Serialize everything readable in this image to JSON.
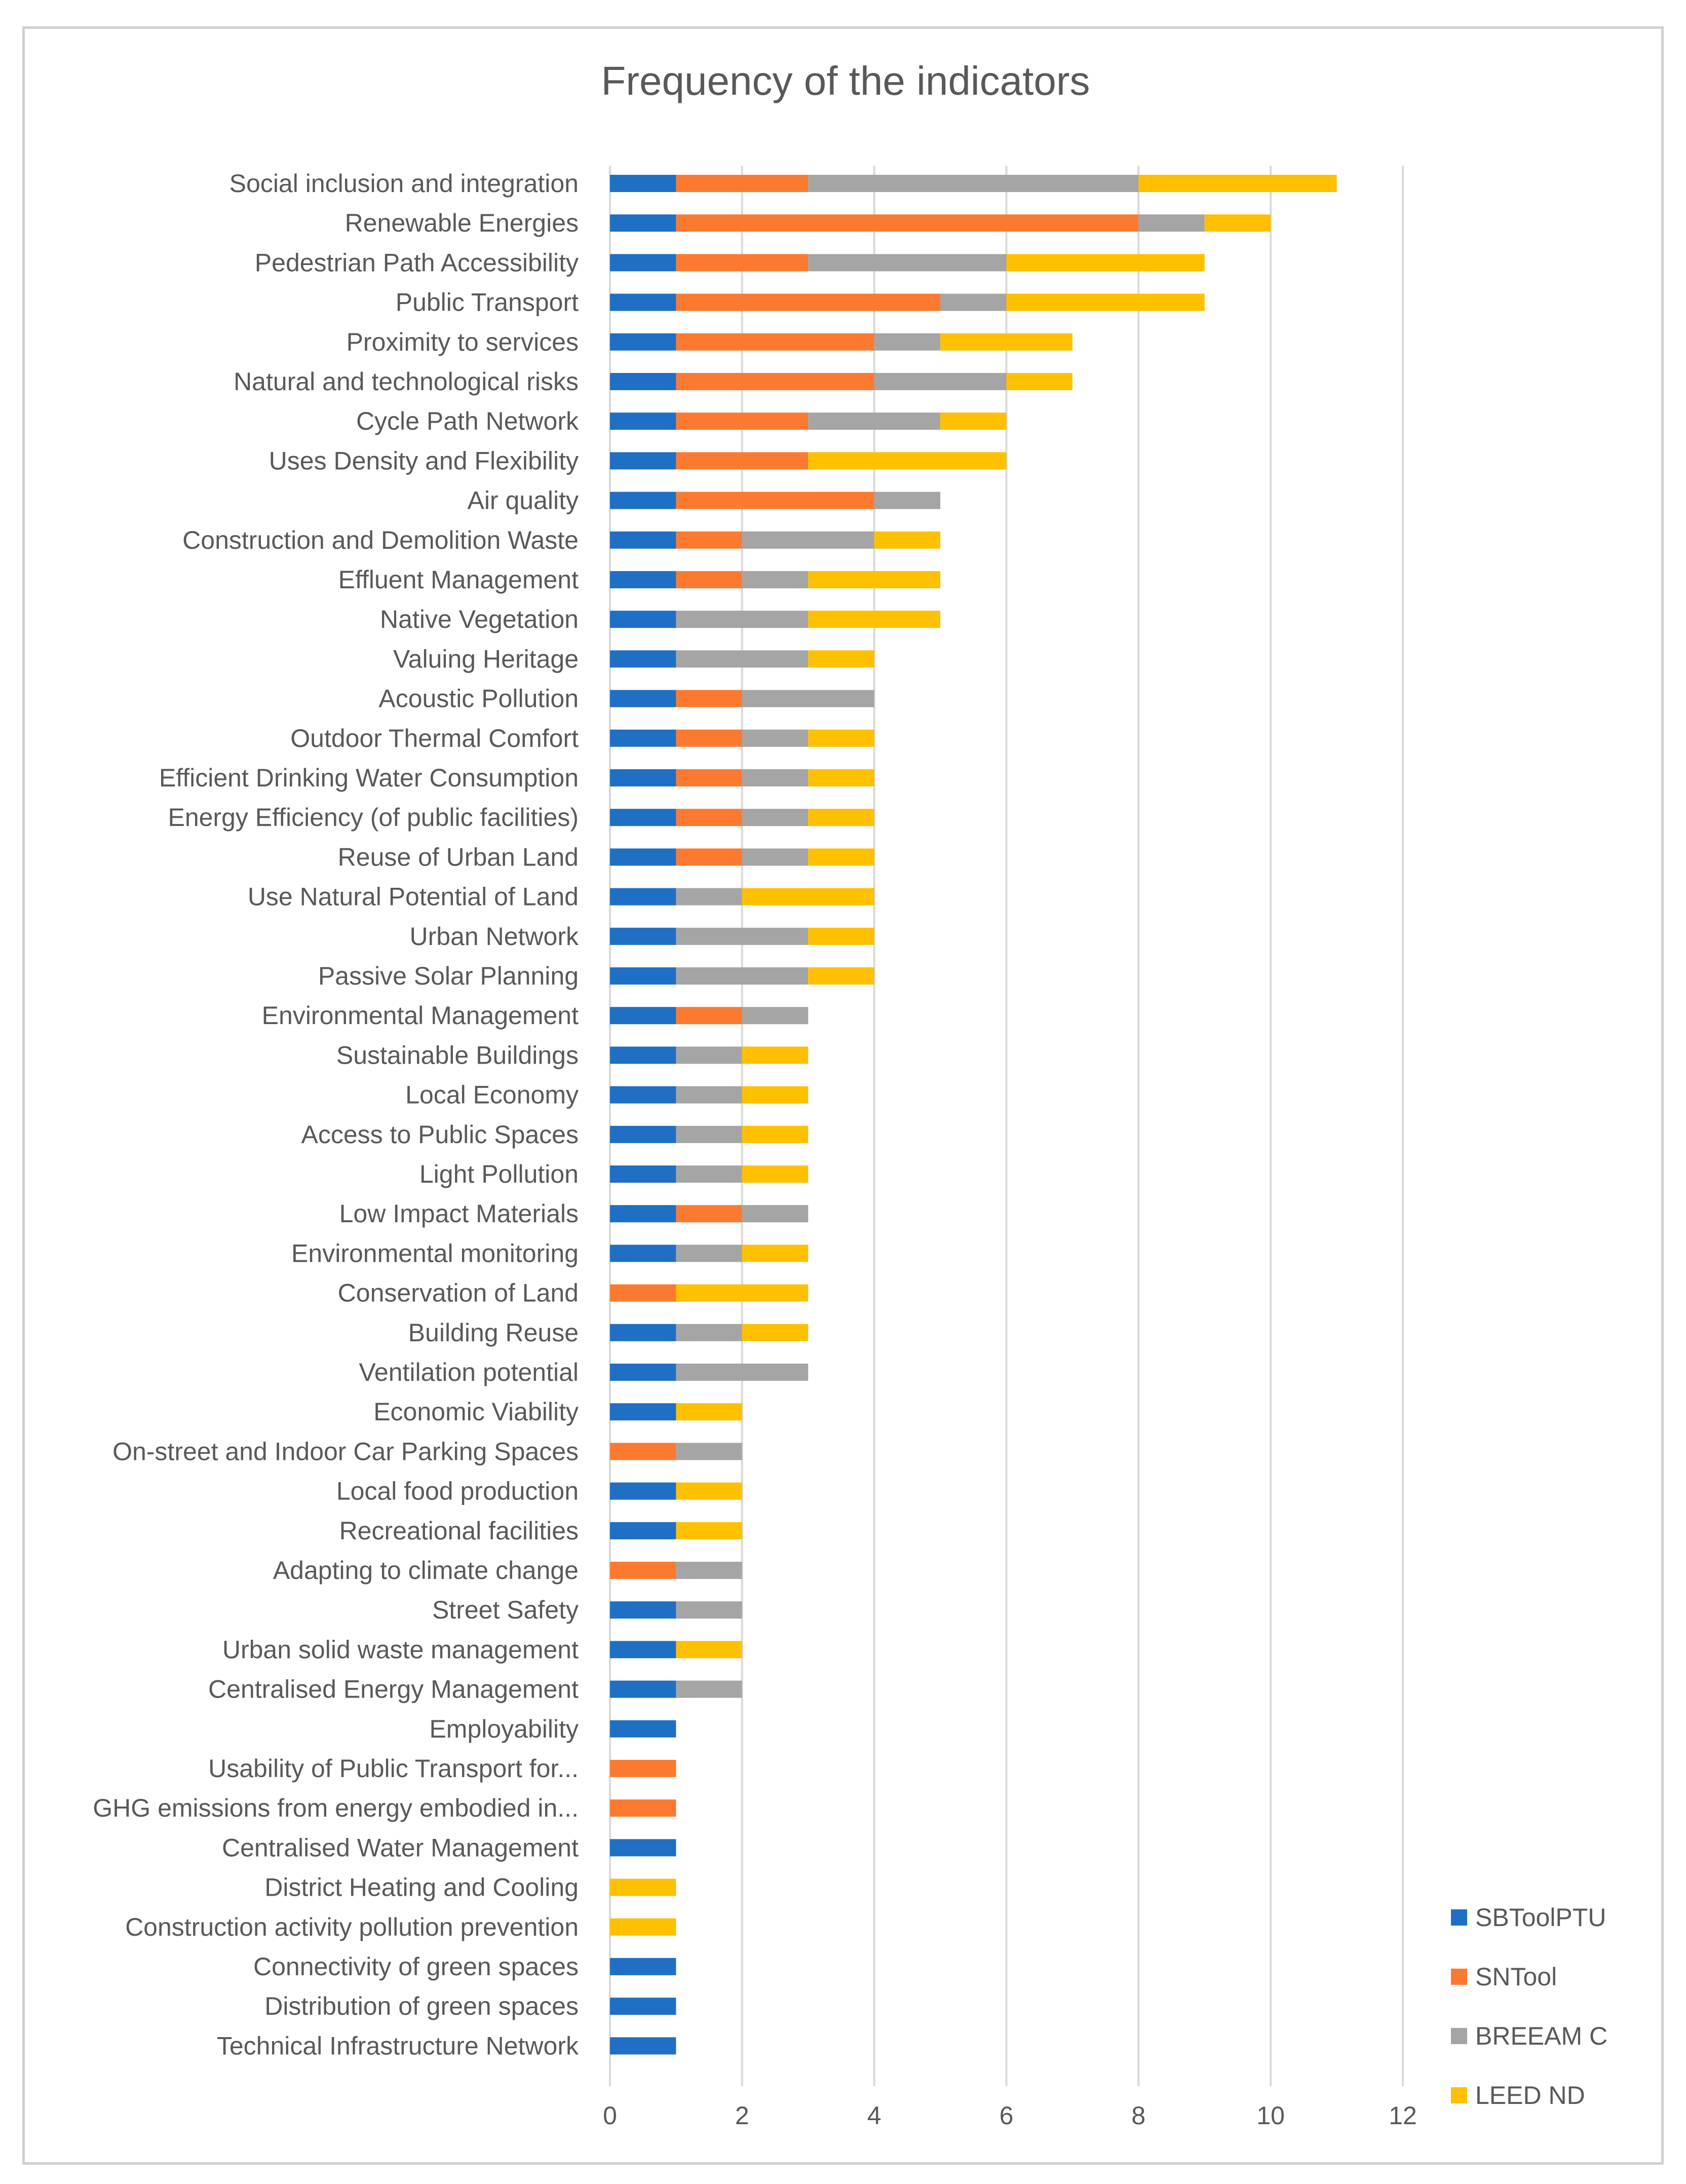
{
  "chart_data": {
    "type": "bar",
    "orientation": "horizontal",
    "stacked": true,
    "title": "Frequency of the indicators",
    "xlabel": "",
    "ylabel": "",
    "xlim": [
      0,
      12
    ],
    "x_ticks": [
      0,
      2,
      4,
      6,
      8,
      10,
      12
    ],
    "grid": true,
    "legend": {
      "position": "bottom-right"
    },
    "categories": [
      "Social inclusion and integration",
      "Renewable Energies",
      "Pedestrian Path Accessibility",
      "Public Transport",
      "Proximity to services",
      "Natural and technological risks",
      "Cycle Path Network",
      "Uses Density and Flexibility",
      "Air quality",
      "Construction and Demolition Waste",
      "Effluent Management",
      "Native Vegetation",
      "Valuing Heritage",
      "Acoustic Pollution",
      "Outdoor Thermal Comfort",
      "Efficient Drinking Water Consumption",
      "Energy Efficiency (of public facilities)",
      "Reuse of Urban Land",
      "Use Natural Potential of Land",
      "Urban Network",
      "Passive Solar Planning",
      "Environmental Management",
      "Sustainable Buildings",
      "Local Economy",
      "Access to Public Spaces",
      "Light Pollution",
      "Low Impact Materials",
      "Environmental monitoring",
      "Conservation of Land",
      "Building Reuse",
      "Ventilation potential",
      "Economic Viability",
      "On-street and Indoor Car Parking Spaces",
      "Local food production",
      "Recreational facilities",
      "Adapting to climate change",
      "Street Safety",
      "Urban solid waste management",
      "Centralised Energy Management",
      "Employability",
      "Usability of Public Transport for...",
      "GHG emissions from energy embodied in...",
      "Centralised Water Management",
      "District Heating and Cooling",
      "Construction activity pollution prevention",
      "Connectivity of green spaces",
      "Distribution of green spaces",
      "Technical Infrastructure Network"
    ],
    "series": [
      {
        "name": "SBToolPTU",
        "color": "#1f6fc5",
        "values": [
          1,
          1,
          1,
          1,
          1,
          1,
          1,
          1,
          1,
          1,
          1,
          1,
          1,
          1,
          1,
          1,
          1,
          1,
          1,
          1,
          1,
          1,
          1,
          1,
          1,
          1,
          1,
          1,
          0,
          1,
          1,
          1,
          0,
          1,
          1,
          0,
          1,
          1,
          1,
          1,
          0,
          0,
          1,
          0,
          0,
          1,
          1,
          1
        ]
      },
      {
        "name": "SNTool",
        "color": "#fb7a30",
        "values": [
          2,
          7,
          2,
          4,
          3,
          3,
          2,
          2,
          3,
          1,
          1,
          0,
          0,
          1,
          1,
          1,
          1,
          1,
          0,
          0,
          0,
          1,
          0,
          0,
          0,
          0,
          1,
          0,
          1,
          0,
          0,
          0,
          1,
          0,
          0,
          1,
          0,
          0,
          0,
          0,
          1,
          1,
          0,
          0,
          0,
          0,
          0,
          0
        ]
      },
      {
        "name": "BREEAM C",
        "color": "#a5a5a5",
        "values": [
          5,
          1,
          3,
          1,
          1,
          2,
          2,
          0,
          1,
          2,
          1,
          2,
          2,
          2,
          1,
          1,
          1,
          1,
          1,
          2,
          2,
          1,
          1,
          1,
          1,
          1,
          1,
          1,
          0,
          1,
          2,
          0,
          1,
          0,
          0,
          1,
          1,
          0,
          1,
          0,
          0,
          0,
          0,
          0,
          0,
          0,
          0,
          0
        ]
      },
      {
        "name": "LEED ND",
        "color": "#ffc000",
        "values": [
          3,
          1,
          3,
          3,
          2,
          1,
          1,
          3,
          0,
          1,
          2,
          2,
          1,
          0,
          1,
          1,
          1,
          1,
          2,
          1,
          1,
          0,
          1,
          1,
          1,
          1,
          0,
          1,
          2,
          1,
          0,
          1,
          0,
          1,
          1,
          0,
          0,
          1,
          0,
          0,
          0,
          0,
          0,
          1,
          1,
          0,
          0,
          0
        ]
      }
    ]
  }
}
